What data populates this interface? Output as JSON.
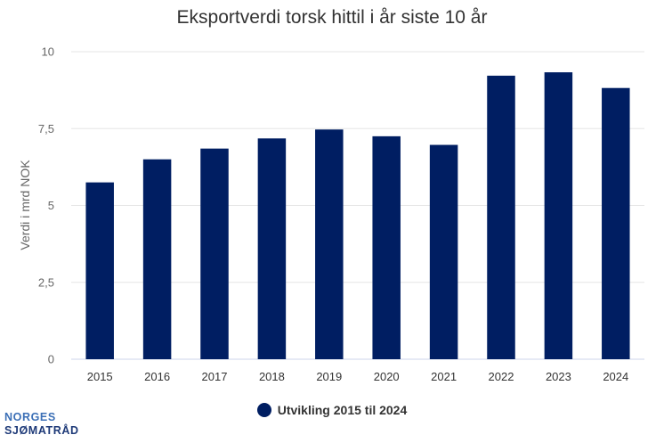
{
  "chart_data": {
    "type": "bar",
    "title": "Eksportverdi torsk hittil i år siste 10 år",
    "ylabel": "Verdi i mrd NOK",
    "xlabel": "",
    "categories": [
      "2015",
      "2016",
      "2017",
      "2018",
      "2019",
      "2020",
      "2021",
      "2022",
      "2023",
      "2024"
    ],
    "series": [
      {
        "name": "Utvikling 2015 til 2024",
        "values": [
          5.75,
          6.5,
          6.85,
          7.18,
          7.47,
          7.25,
          6.97,
          9.22,
          9.33,
          8.82
        ]
      }
    ],
    "ylim": [
      0,
      10
    ],
    "yticks": [
      "0",
      "2,5",
      "5",
      "7,5",
      "10"
    ],
    "ytick_values": [
      0,
      2.5,
      5,
      7.5,
      10
    ],
    "grid": true,
    "legend_position": "bottom-center",
    "bar_color": "#001e62",
    "grid_color": "#e6e6e6",
    "axis_color": "#ccd6eb"
  },
  "logo": {
    "line1": "NORGES",
    "line2": "SJØMATRÅD"
  }
}
